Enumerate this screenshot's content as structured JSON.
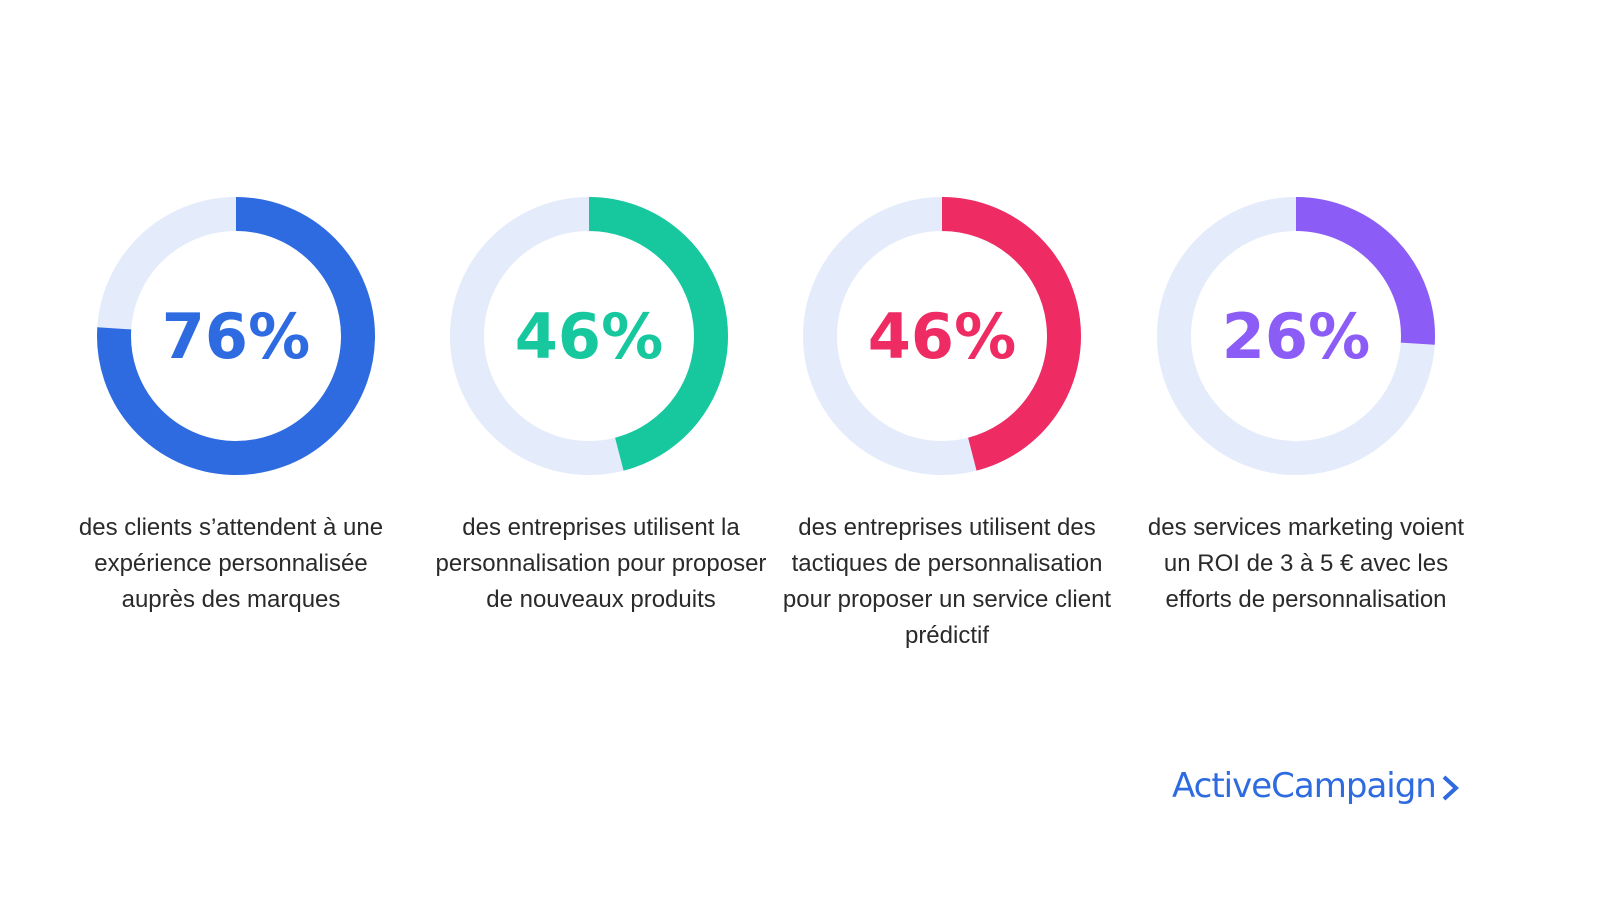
{
  "chart_data": {
    "type": "donut",
    "track_color": "#E4EBFA",
    "items": [
      {
        "value": 76,
        "label": "76%",
        "color": "#2F6BE0",
        "description": "des clients s’attendent à une expérience personnalisée auprès des marques"
      },
      {
        "value": 46,
        "label": "46%",
        "color": "#17C79E",
        "description": "des entreprises utilisent la personnalisation pour proposer de nouveaux produits"
      },
      {
        "value": 46,
        "label": "46%",
        "color": "#EE2B63",
        "description": "des entreprises utilisent des tactiques de personnalisation pour proposer un service client prédictif"
      },
      {
        "value": 26,
        "label": "26%",
        "color": "#8B5CF6",
        "description": "des services marketing voient un ROI de 3 à 5 € avec les efforts de personnalisation"
      }
    ]
  },
  "brand": {
    "name": "ActiveCampaign",
    "icon": "chevron-right-icon",
    "color": "#2F6BE0"
  }
}
